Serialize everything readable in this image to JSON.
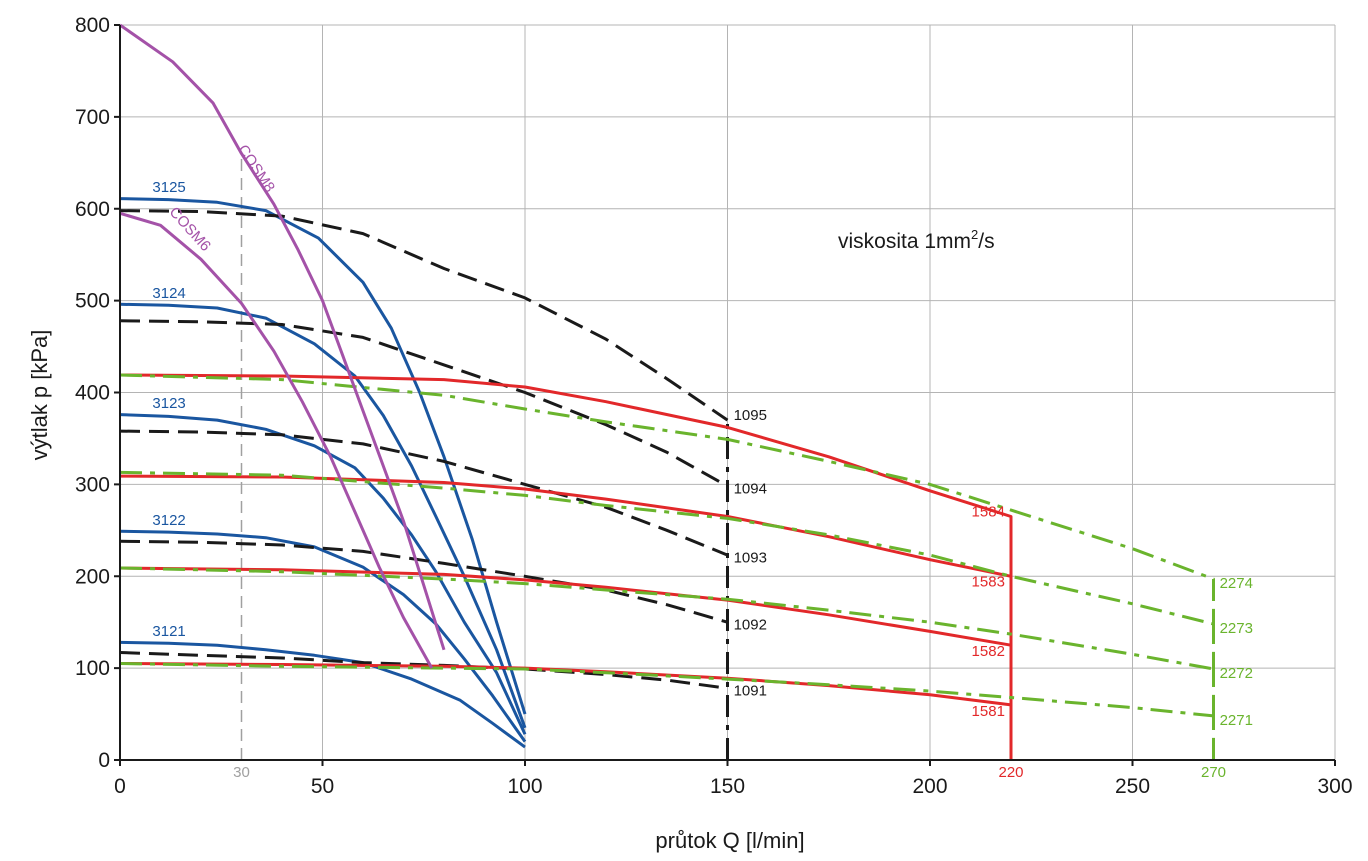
{
  "chart_data": {
    "type": "line",
    "xlabel": "průtok Q [l/min]",
    "ylabel": "výtlak p [kPa]",
    "xlim": [
      0,
      300
    ],
    "ylim": [
      0,
      800
    ],
    "x_ticks": [
      "0",
      "50",
      "100",
      "150",
      "200",
      "250",
      "300"
    ],
    "y_ticks": [
      "0",
      "100",
      "200",
      "300",
      "400",
      "500",
      "600",
      "700",
      "800"
    ],
    "grid": true,
    "annotation": {
      "text": "viskosita 1mm",
      "sup": "2",
      "suffix": "/s"
    },
    "marker_labels": [
      {
        "text": "30",
        "x": 30,
        "color": "#a0a0a0"
      },
      {
        "text": "220",
        "x": 220,
        "color": "#e2282a"
      },
      {
        "text": "270",
        "x": 270,
        "color": "#6ab42d"
      }
    ],
    "colors": {
      "blue": "#1a56a0",
      "black": "#1a1a1a",
      "red": "#e2282a",
      "green": "#6ab42d",
      "purple": "#a452a8",
      "gray": "#a0a0a0"
    },
    "vlines": [
      {
        "x": 30,
        "y0": 0,
        "y1": 660,
        "color": "#a0a0a0",
        "style": "dashed"
      },
      {
        "x": 150,
        "y0": 0,
        "y1": 370,
        "color": "#1a1a1a",
        "style": "dashdot"
      },
      {
        "x": 220,
        "y0": 0,
        "y1": 265,
        "color": "#e2282a",
        "style": "solid"
      },
      {
        "x": 270,
        "y0": 0,
        "y1": 197,
        "color": "#6ab42d",
        "style": "dashdot"
      }
    ],
    "series": [
      {
        "name": "3125",
        "color": "#1a56a0",
        "style": "solid",
        "points": [
          [
            0,
            611
          ],
          [
            12,
            610
          ],
          [
            24,
            607
          ],
          [
            36,
            598
          ],
          [
            49,
            568
          ],
          [
            60,
            520
          ],
          [
            67,
            470
          ],
          [
            74,
            400
          ],
          [
            80,
            330
          ],
          [
            87,
            240
          ],
          [
            93,
            150
          ],
          [
            100,
            50
          ]
        ],
        "label": {
          "text": "3125",
          "x": 8,
          "y": 618,
          "anchor": "start"
        }
      },
      {
        "name": "3124",
        "color": "#1a56a0",
        "style": "solid",
        "points": [
          [
            0,
            496
          ],
          [
            12,
            495
          ],
          [
            24,
            492
          ],
          [
            36,
            481
          ],
          [
            48,
            453
          ],
          [
            58,
            418
          ],
          [
            65,
            375
          ],
          [
            72,
            320
          ],
          [
            78,
            265
          ],
          [
            85,
            200
          ],
          [
            93,
            120
          ],
          [
            100,
            35
          ]
        ],
        "label": {
          "text": "3124",
          "x": 8,
          "y": 503,
          "anchor": "start"
        }
      },
      {
        "name": "3123",
        "color": "#1a56a0",
        "style": "solid",
        "points": [
          [
            0,
            376
          ],
          [
            12,
            374
          ],
          [
            24,
            370
          ],
          [
            36,
            360
          ],
          [
            48,
            342
          ],
          [
            58,
            318
          ],
          [
            65,
            285
          ],
          [
            72,
            245
          ],
          [
            78,
            205
          ],
          [
            85,
            150
          ],
          [
            93,
            95
          ],
          [
            100,
            28
          ]
        ],
        "label": {
          "text": "3123",
          "x": 8,
          "y": 383,
          "anchor": "start"
        }
      },
      {
        "name": "3122",
        "color": "#1a56a0",
        "style": "solid",
        "points": [
          [
            0,
            249
          ],
          [
            12,
            248
          ],
          [
            24,
            246
          ],
          [
            36,
            242
          ],
          [
            48,
            232
          ],
          [
            60,
            210
          ],
          [
            70,
            180
          ],
          [
            78,
            148
          ],
          [
            85,
            110
          ],
          [
            92,
            70
          ],
          [
            100,
            20
          ]
        ],
        "label": {
          "text": "3122",
          "x": 8,
          "y": 256,
          "anchor": "start"
        }
      },
      {
        "name": "3121",
        "color": "#1a56a0",
        "style": "solid",
        "points": [
          [
            0,
            128
          ],
          [
            12,
            127
          ],
          [
            24,
            125
          ],
          [
            36,
            120
          ],
          [
            48,
            114
          ],
          [
            60,
            106
          ],
          [
            72,
            88
          ],
          [
            84,
            65
          ],
          [
            92,
            40
          ],
          [
            100,
            14
          ]
        ],
        "label": {
          "text": "3121",
          "x": 8,
          "y": 135,
          "anchor": "start"
        }
      },
      {
        "name": "1095",
        "color": "#1a1a1a",
        "style": "dashed",
        "points": [
          [
            0,
            598
          ],
          [
            20,
            597
          ],
          [
            40,
            592
          ],
          [
            60,
            573
          ],
          [
            80,
            535
          ],
          [
            100,
            503
          ],
          [
            120,
            458
          ],
          [
            135,
            415
          ],
          [
            150,
            370
          ]
        ],
        "label": {
          "text": "1095",
          "x": 151.5,
          "y": 370,
          "anchor": "start"
        }
      },
      {
        "name": "1094",
        "color": "#1a1a1a",
        "style": "dashed",
        "points": [
          [
            0,
            478
          ],
          [
            20,
            477
          ],
          [
            40,
            474
          ],
          [
            60,
            460
          ],
          [
            80,
            430
          ],
          [
            100,
            400
          ],
          [
            120,
            365
          ],
          [
            135,
            335
          ],
          [
            150,
            298
          ]
        ],
        "label": {
          "text": "1094",
          "x": 151.5,
          "y": 290,
          "anchor": "start"
        }
      },
      {
        "name": "1093",
        "color": "#1a1a1a",
        "style": "dashed",
        "points": [
          [
            0,
            358
          ],
          [
            20,
            357
          ],
          [
            40,
            354
          ],
          [
            60,
            344
          ],
          [
            80,
            325
          ],
          [
            100,
            300
          ],
          [
            120,
            275
          ],
          [
            135,
            250
          ],
          [
            150,
            223
          ]
        ],
        "label": {
          "text": "1093",
          "x": 151.5,
          "y": 215,
          "anchor": "start"
        }
      },
      {
        "name": "1092",
        "color": "#1a1a1a",
        "style": "dashed",
        "points": [
          [
            0,
            238
          ],
          [
            20,
            237
          ],
          [
            40,
            234
          ],
          [
            60,
            227
          ],
          [
            80,
            214
          ],
          [
            100,
            200
          ],
          [
            120,
            185
          ],
          [
            135,
            169
          ],
          [
            150,
            150
          ]
        ],
        "label": {
          "text": "1092",
          "x": 151.5,
          "y": 142,
          "anchor": "start"
        }
      },
      {
        "name": "1091",
        "color": "#1a1a1a",
        "style": "dashed",
        "points": [
          [
            0,
            117
          ],
          [
            20,
            114
          ],
          [
            40,
            111
          ],
          [
            60,
            106
          ],
          [
            80,
            103
          ],
          [
            100,
            99
          ],
          [
            120,
            93
          ],
          [
            135,
            87
          ],
          [
            150,
            78
          ]
        ],
        "label": {
          "text": "1091",
          "x": 151.5,
          "y": 70,
          "anchor": "start"
        }
      },
      {
        "name": "1584",
        "color": "#e2282a",
        "style": "solid",
        "points": [
          [
            0,
            419
          ],
          [
            40,
            418
          ],
          [
            80,
            414
          ],
          [
            100,
            406
          ],
          [
            120,
            390
          ],
          [
            150,
            362
          ],
          [
            175,
            330
          ],
          [
            200,
            293
          ],
          [
            220,
            265
          ],
          [
            220,
            0
          ]
        ],
        "label": {
          "text": "1584",
          "x": 218.5,
          "y": 265,
          "anchor": "end"
        }
      },
      {
        "name": "1583",
        "color": "#e2282a",
        "style": "solid",
        "points": [
          [
            0,
            309
          ],
          [
            40,
            308
          ],
          [
            80,
            302
          ],
          [
            100,
            295
          ],
          [
            120,
            284
          ],
          [
            150,
            265
          ],
          [
            175,
            243
          ],
          [
            200,
            218
          ],
          [
            220,
            200
          ]
        ],
        "label": {
          "text": "1583",
          "x": 218.5,
          "y": 189,
          "anchor": "end"
        }
      },
      {
        "name": "1582",
        "color": "#e2282a",
        "style": "solid",
        "points": [
          [
            0,
            209
          ],
          [
            40,
            207
          ],
          [
            80,
            202
          ],
          [
            100,
            196
          ],
          [
            120,
            188
          ],
          [
            150,
            174
          ],
          [
            175,
            158
          ],
          [
            200,
            140
          ],
          [
            220,
            125
          ]
        ],
        "label": {
          "text": "1582",
          "x": 218.5,
          "y": 113,
          "anchor": "end"
        }
      },
      {
        "name": "1581",
        "color": "#e2282a",
        "style": "solid",
        "points": [
          [
            0,
            105
          ],
          [
            40,
            104
          ],
          [
            80,
            102
          ],
          [
            100,
            100
          ],
          [
            120,
            96
          ],
          [
            150,
            89
          ],
          [
            175,
            81
          ],
          [
            200,
            71
          ],
          [
            220,
            60
          ]
        ],
        "label": {
          "text": "1581",
          "x": 218.5,
          "y": 48,
          "anchor": "end"
        }
      },
      {
        "name": "2274",
        "color": "#6ab42d",
        "style": "dashdot",
        "points": [
          [
            0,
            419
          ],
          [
            40,
            414
          ],
          [
            80,
            397
          ],
          [
            100,
            382
          ],
          [
            120,
            368
          ],
          [
            150,
            349
          ],
          [
            175,
            325
          ],
          [
            200,
            300
          ],
          [
            220,
            272
          ],
          [
            250,
            230
          ],
          [
            270,
            197
          ],
          [
            270,
            0
          ]
        ],
        "label": {
          "text": "2274",
          "x": 271.5,
          "y": 187,
          "anchor": "start"
        }
      },
      {
        "name": "2273",
        "color": "#6ab42d",
        "style": "dashdot",
        "points": [
          [
            0,
            313
          ],
          [
            40,
            310
          ],
          [
            80,
            296
          ],
          [
            100,
            288
          ],
          [
            120,
            277
          ],
          [
            150,
            263
          ],
          [
            175,
            245
          ],
          [
            200,
            223
          ],
          [
            220,
            200
          ],
          [
            250,
            170
          ],
          [
            270,
            148
          ]
        ],
        "label": {
          "text": "2273",
          "x": 271.5,
          "y": 138,
          "anchor": "start"
        }
      },
      {
        "name": "2272",
        "color": "#6ab42d",
        "style": "dashdot",
        "points": [
          [
            0,
            209
          ],
          [
            40,
            205
          ],
          [
            80,
            197
          ],
          [
            100,
            192
          ],
          [
            120,
            185
          ],
          [
            150,
            175
          ],
          [
            175,
            163
          ],
          [
            200,
            150
          ],
          [
            220,
            137
          ],
          [
            250,
            115
          ],
          [
            270,
            99
          ]
        ],
        "label": {
          "text": "2272",
          "x": 271.5,
          "y": 89,
          "anchor": "start"
        }
      },
      {
        "name": "2271",
        "color": "#6ab42d",
        "style": "dashdot",
        "points": [
          [
            0,
            105
          ],
          [
            40,
            102
          ],
          [
            80,
            100
          ],
          [
            100,
            99
          ],
          [
            120,
            95
          ],
          [
            150,
            88
          ],
          [
            175,
            82
          ],
          [
            200,
            75
          ],
          [
            220,
            68
          ],
          [
            250,
            57
          ],
          [
            270,
            48
          ]
        ],
        "label": {
          "text": "2271",
          "x": 271.5,
          "y": 38,
          "anchor": "start"
        }
      },
      {
        "name": "COSM8",
        "color": "#a452a8",
        "style": "solid",
        "points": [
          [
            0,
            800
          ],
          [
            13,
            760
          ],
          [
            23,
            715
          ],
          [
            30,
            660
          ],
          [
            38,
            605
          ],
          [
            44,
            555
          ],
          [
            50,
            500
          ],
          [
            55,
            440
          ],
          [
            60,
            380
          ],
          [
            65,
            320
          ],
          [
            70,
            260
          ],
          [
            75,
            190
          ],
          [
            80,
            120
          ]
        ],
        "label": {
          "text": "COSM8",
          "x": 29,
          "y": 665,
          "anchor": "start",
          "rotate": 56
        }
      },
      {
        "name": "COSM6",
        "color": "#a452a8",
        "style": "solid",
        "points": [
          [
            0,
            595
          ],
          [
            10,
            582
          ],
          [
            20,
            545
          ],
          [
            30,
            497
          ],
          [
            38,
            445
          ],
          [
            45,
            390
          ],
          [
            52,
            330
          ],
          [
            58,
            270
          ],
          [
            64,
            210
          ],
          [
            70,
            155
          ],
          [
            77,
            100
          ]
        ],
        "label": {
          "text": "COSM6",
          "x": 12,
          "y": 596,
          "anchor": "start",
          "rotate": 48
        }
      }
    ]
  }
}
